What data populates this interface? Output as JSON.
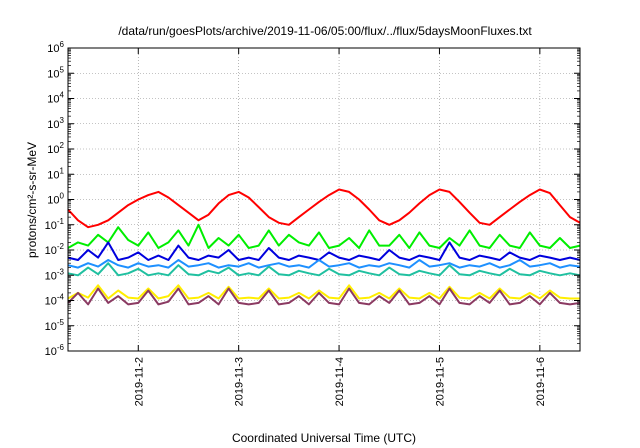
{
  "chart_data": {
    "type": "line",
    "title": "/data/run/goesPlots/archive/2019-11-06/05:00/flux/../flux/5daysMoonFluxes.txt",
    "xlabel": "Coordinated Universal Time (UTC)",
    "ylabel": "protons/cm²-s-sr-MeV",
    "yscale": "log",
    "ylim": [
      1e-06,
      1000000.0
    ],
    "ytick_exponents": [
      -6,
      -5,
      -4,
      -3,
      -2,
      -1,
      0,
      1,
      2,
      3,
      4,
      5,
      6
    ],
    "xlim": [
      0,
      5.1
    ],
    "xticks": [
      {
        "x": 0.7,
        "label": "2019-11-2"
      },
      {
        "x": 1.7,
        "label": "2019-11-3"
      },
      {
        "x": 2.7,
        "label": "2019-11-4"
      },
      {
        "x": 3.7,
        "label": "2019-11-5"
      },
      {
        "x": 4.7,
        "label": "2019-11-6"
      }
    ],
    "grid": true,
    "series": [
      {
        "color": "#ff0000",
        "x": [
          0,
          0.1,
          0.2,
          0.3,
          0.4,
          0.5,
          0.6,
          0.7,
          0.8,
          0.9,
          1.0,
          1.1,
          1.2,
          1.3,
          1.4,
          1.5,
          1.6,
          1.7,
          1.8,
          1.9,
          2.0,
          2.1,
          2.2,
          2.3,
          2.4,
          2.5,
          2.6,
          2.7,
          2.8,
          2.9,
          3.0,
          3.1,
          3.2,
          3.3,
          3.4,
          3.5,
          3.6,
          3.7,
          3.8,
          3.9,
          4.0,
          4.1,
          4.2,
          4.3,
          4.4,
          4.5,
          4.6,
          4.7,
          4.8,
          4.9,
          5.0,
          5.1
        ],
        "y": [
          0.4,
          0.15,
          0.08,
          0.1,
          0.15,
          0.3,
          0.6,
          1.0,
          1.5,
          2.0,
          1.2,
          0.6,
          0.3,
          0.15,
          0.25,
          0.7,
          1.5,
          2.0,
          1.2,
          0.5,
          0.2,
          0.12,
          0.1,
          0.2,
          0.4,
          0.8,
          1.5,
          2.5,
          2.0,
          1.0,
          0.4,
          0.15,
          0.1,
          0.15,
          0.3,
          0.7,
          1.5,
          2.5,
          2.0,
          0.8,
          0.3,
          0.12,
          0.1,
          0.2,
          0.4,
          0.8,
          1.5,
          2.5,
          1.8,
          0.6,
          0.2,
          0.12
        ]
      },
      {
        "color": "#00ee00",
        "x": [
          0,
          0.1,
          0.2,
          0.3,
          0.4,
          0.5,
          0.6,
          0.7,
          0.8,
          0.9,
          1.0,
          1.1,
          1.2,
          1.3,
          1.4,
          1.5,
          1.6,
          1.7,
          1.8,
          1.9,
          2.0,
          2.1,
          2.2,
          2.3,
          2.4,
          2.5,
          2.6,
          2.7,
          2.8,
          2.9,
          3.0,
          3.1,
          3.2,
          3.3,
          3.4,
          3.5,
          3.6,
          3.7,
          3.8,
          3.9,
          4.0,
          4.1,
          4.2,
          4.3,
          4.4,
          4.5,
          4.6,
          4.7,
          4.8,
          4.9,
          5.0,
          5.1
        ],
        "y": [
          0.012,
          0.02,
          0.015,
          0.04,
          0.02,
          0.08,
          0.025,
          0.015,
          0.05,
          0.012,
          0.02,
          0.06,
          0.015,
          0.1,
          0.012,
          0.03,
          0.015,
          0.04,
          0.012,
          0.015,
          0.06,
          0.015,
          0.04,
          0.02,
          0.015,
          0.05,
          0.012,
          0.015,
          0.03,
          0.012,
          0.06,
          0.015,
          0.015,
          0.04,
          0.012,
          0.05,
          0.015,
          0.012,
          0.03,
          0.015,
          0.06,
          0.015,
          0.012,
          0.04,
          0.015,
          0.012,
          0.05,
          0.015,
          0.012,
          0.03,
          0.012,
          0.015
        ]
      },
      {
        "color": "#0000dd",
        "x": [
          0,
          0.1,
          0.2,
          0.3,
          0.4,
          0.5,
          0.6,
          0.7,
          0.8,
          0.9,
          1.0,
          1.1,
          1.2,
          1.3,
          1.4,
          1.5,
          1.6,
          1.7,
          1.8,
          1.9,
          2.0,
          2.1,
          2.2,
          2.3,
          2.4,
          2.5,
          2.6,
          2.7,
          2.8,
          2.9,
          3.0,
          3.1,
          3.2,
          3.3,
          3.4,
          3.5,
          3.6,
          3.7,
          3.8,
          3.9,
          4.0,
          4.1,
          4.2,
          4.3,
          4.4,
          4.5,
          4.6,
          4.7,
          4.8,
          4.9,
          5.0,
          5.1
        ],
        "y": [
          0.005,
          0.004,
          0.01,
          0.005,
          0.02,
          0.004,
          0.005,
          0.008,
          0.004,
          0.006,
          0.004,
          0.015,
          0.005,
          0.004,
          0.006,
          0.005,
          0.01,
          0.004,
          0.005,
          0.004,
          0.012,
          0.005,
          0.004,
          0.006,
          0.005,
          0.004,
          0.008,
          0.005,
          0.004,
          0.006,
          0.005,
          0.004,
          0.01,
          0.005,
          0.004,
          0.006,
          0.005,
          0.004,
          0.02,
          0.005,
          0.004,
          0.006,
          0.005,
          0.004,
          0.008,
          0.005,
          0.004,
          0.006,
          0.005,
          0.004,
          0.005,
          0.004
        ]
      },
      {
        "color": "#1e90ff",
        "x": [
          0,
          0.1,
          0.2,
          0.3,
          0.4,
          0.5,
          0.6,
          0.7,
          0.8,
          0.9,
          1.0,
          1.1,
          1.2,
          1.3,
          1.4,
          1.5,
          1.6,
          1.7,
          1.8,
          1.9,
          2.0,
          2.1,
          2.2,
          2.3,
          2.4,
          2.5,
          2.6,
          2.7,
          2.8,
          2.9,
          3.0,
          3.1,
          3.2,
          3.3,
          3.4,
          3.5,
          3.6,
          3.7,
          3.8,
          3.9,
          4.0,
          4.1,
          4.2,
          4.3,
          4.4,
          4.5,
          4.6,
          4.7,
          4.8,
          4.9,
          5.0,
          5.1
        ],
        "y": [
          0.0025,
          0.002,
          0.003,
          0.0022,
          0.004,
          0.0025,
          0.002,
          0.003,
          0.0022,
          0.0025,
          0.002,
          0.004,
          0.0022,
          0.0025,
          0.003,
          0.002,
          0.0025,
          0.0022,
          0.003,
          0.002,
          0.0025,
          0.003,
          0.0022,
          0.0025,
          0.002,
          0.004,
          0.0022,
          0.0025,
          0.003,
          0.002,
          0.0025,
          0.0022,
          0.003,
          0.0025,
          0.002,
          0.004,
          0.0022,
          0.0025,
          0.003,
          0.002,
          0.0025,
          0.0022,
          0.003,
          0.002,
          0.0025,
          0.004,
          0.0022,
          0.0025,
          0.003,
          0.002,
          0.0025,
          0.0022
        ]
      },
      {
        "color": "#20c0a0",
        "x": [
          0,
          0.1,
          0.2,
          0.3,
          0.4,
          0.5,
          0.6,
          0.7,
          0.8,
          0.9,
          1.0,
          1.1,
          1.2,
          1.3,
          1.4,
          1.5,
          1.6,
          1.7,
          1.8,
          1.9,
          2.0,
          2.1,
          2.2,
          2.3,
          2.4,
          2.5,
          2.6,
          2.7,
          2.8,
          2.9,
          3.0,
          3.1,
          3.2,
          3.3,
          3.4,
          3.5,
          3.6,
          3.7,
          3.8,
          3.9,
          4.0,
          4.1,
          4.2,
          4.3,
          4.4,
          4.5,
          4.6,
          4.7,
          4.8,
          4.9,
          5.0,
          5.1
        ],
        "y": [
          0.0012,
          0.001,
          0.002,
          0.0011,
          0.003,
          0.001,
          0.0012,
          0.0018,
          0.001,
          0.0012,
          0.001,
          0.0025,
          0.0011,
          0.001,
          0.0015,
          0.0012,
          0.002,
          0.001,
          0.0012,
          0.001,
          0.0022,
          0.0011,
          0.001,
          0.0015,
          0.0012,
          0.001,
          0.0018,
          0.0011,
          0.001,
          0.0015,
          0.0012,
          0.001,
          0.002,
          0.0011,
          0.001,
          0.0015,
          0.0012,
          0.001,
          0.0025,
          0.0011,
          0.001,
          0.0015,
          0.0012,
          0.001,
          0.0018,
          0.0011,
          0.001,
          0.0015,
          0.0012,
          0.001,
          0.0012,
          0.001
        ]
      },
      {
        "color": "#ffee00",
        "x": [
          0,
          0.1,
          0.2,
          0.3,
          0.4,
          0.5,
          0.6,
          0.7,
          0.8,
          0.9,
          1.0,
          1.1,
          1.2,
          1.3,
          1.4,
          1.5,
          1.6,
          1.7,
          1.8,
          1.9,
          2.0,
          2.1,
          2.2,
          2.3,
          2.4,
          2.5,
          2.6,
          2.7,
          2.8,
          2.9,
          3.0,
          3.1,
          3.2,
          3.3,
          3.4,
          3.5,
          3.6,
          3.7,
          3.8,
          3.9,
          4.0,
          4.1,
          4.2,
          4.3,
          4.4,
          4.5,
          4.6,
          4.7,
          4.8,
          4.9,
          5.0,
          5.1
        ],
        "y": [
          0.00012,
          0.0002,
          0.00013,
          0.0004,
          0.00012,
          0.00025,
          0.00013,
          0.00012,
          0.0003,
          0.00012,
          0.00015,
          0.0004,
          0.00012,
          0.00013,
          0.0002,
          0.00012,
          0.00035,
          0.00012,
          0.00013,
          0.00012,
          0.0003,
          0.00012,
          0.00013,
          0.0002,
          0.00012,
          0.00025,
          0.00013,
          0.00012,
          0.0004,
          0.00012,
          0.00013,
          0.0002,
          0.00012,
          0.0003,
          0.00013,
          0.00012,
          0.0002,
          0.00012,
          0.00035,
          0.00013,
          0.00012,
          0.0002,
          0.00012,
          0.0003,
          0.00013,
          0.00012,
          0.0002,
          0.00012,
          0.00025,
          0.00013,
          0.00012,
          0.00012
        ]
      },
      {
        "color": "#8b3a62",
        "x": [
          0,
          0.1,
          0.2,
          0.3,
          0.4,
          0.5,
          0.6,
          0.7,
          0.8,
          0.9,
          1.0,
          1.1,
          1.2,
          1.3,
          1.4,
          1.5,
          1.6,
          1.7,
          1.8,
          1.9,
          2.0,
          2.1,
          2.2,
          2.3,
          2.4,
          2.5,
          2.6,
          2.7,
          2.8,
          2.9,
          3.0,
          3.1,
          3.2,
          3.3,
          3.4,
          3.5,
          3.6,
          3.7,
          3.8,
          3.9,
          4.0,
          4.1,
          4.2,
          4.3,
          4.4,
          4.5,
          4.6,
          4.7,
          4.8,
          4.9,
          5.0,
          5.1
        ],
        "y": [
          8e-05,
          0.0002,
          7e-05,
          0.0003,
          8e-05,
          0.00015,
          7e-05,
          8e-05,
          0.00025,
          7e-05,
          9e-05,
          0.0003,
          7e-05,
          8e-05,
          0.00015,
          7e-05,
          0.0003,
          8e-05,
          7e-05,
          8e-05,
          0.00025,
          7e-05,
          8e-05,
          0.00015,
          7e-05,
          0.0002,
          8e-05,
          7e-05,
          0.0003,
          8e-05,
          7e-05,
          0.00015,
          8e-05,
          0.00025,
          7e-05,
          8e-05,
          0.00015,
          7e-05,
          0.0003,
          8e-05,
          7e-05,
          0.00015,
          8e-05,
          0.00025,
          7e-05,
          8e-05,
          0.00015,
          7e-05,
          0.0002,
          8e-05,
          7e-05,
          8e-05
        ]
      }
    ]
  }
}
